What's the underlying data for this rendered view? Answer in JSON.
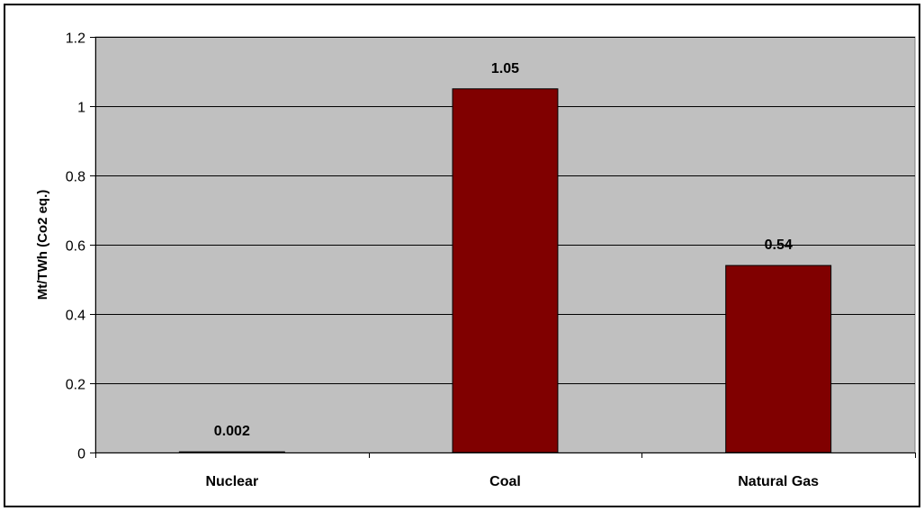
{
  "chart_data": {
    "type": "bar",
    "title": "",
    "xlabel": "",
    "ylabel": "Mt/TWh (Co2 eq.)",
    "categories": [
      "Nuclear",
      "Coal",
      "Natural Gas"
    ],
    "values": [
      0.002,
      1.05,
      0.54
    ],
    "data_labels": [
      "0.002",
      "1.05",
      "0.54"
    ],
    "ylim": [
      0,
      1.2
    ],
    "y_ticks": [
      0,
      0.2,
      0.4,
      0.6,
      0.8,
      1,
      1.2
    ],
    "y_tick_labels": [
      "0",
      "0.2",
      "0.4",
      "0.6",
      "0.8",
      "1",
      "1.2"
    ],
    "grid": true,
    "legend": "none",
    "colors": {
      "bar_fill": "#800000",
      "plot_background": "#c0c0c0",
      "gridline": "#000000"
    }
  }
}
